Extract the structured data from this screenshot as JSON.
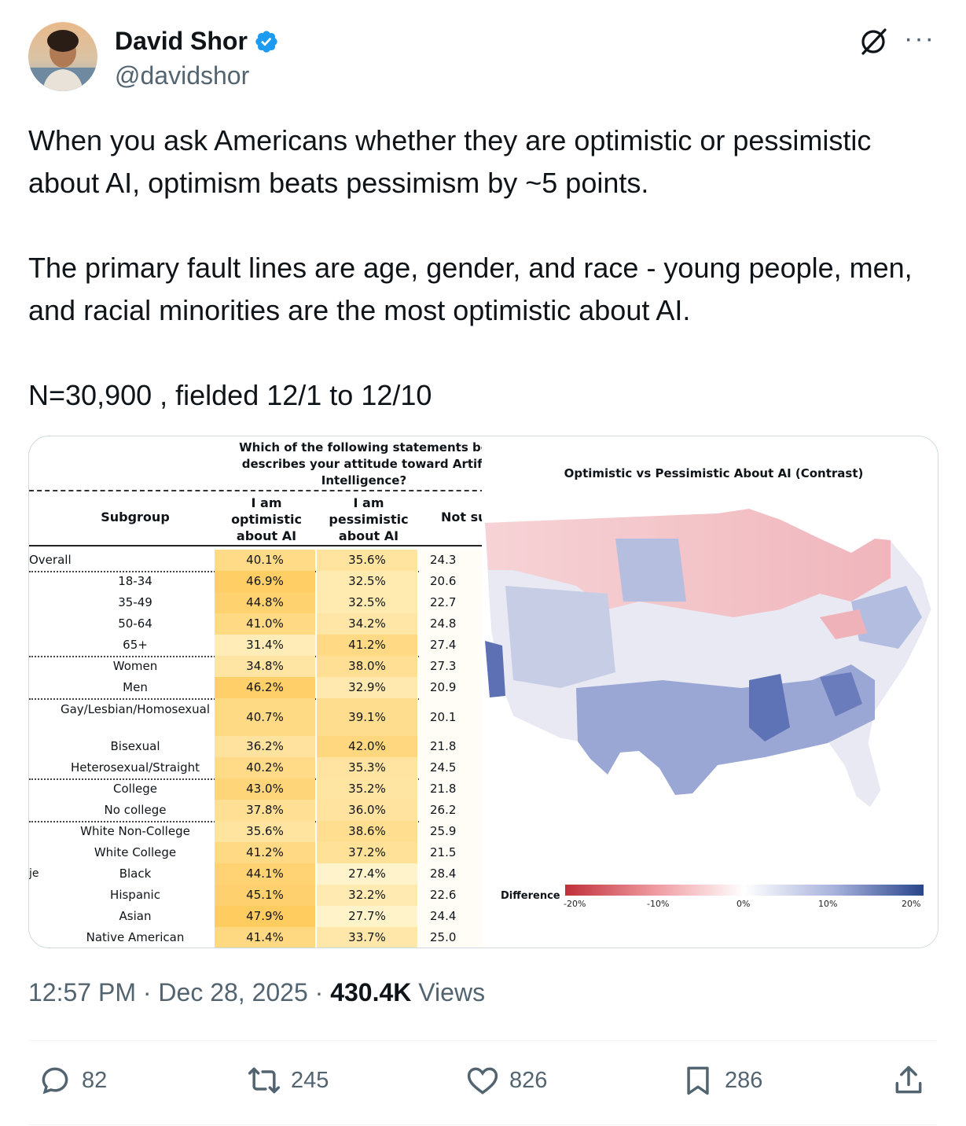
{
  "author": {
    "name": "David Shor",
    "handle": "@davidshor"
  },
  "post": {
    "text": "When you ask Americans whether they are optimistic or pessimistic about AI, optimism beats pessimism by ~5 points.\n\nThe primary fault lines are age, gender, and race - young people, men, and racial minorities are the most optimistic about AI.\n\nN=30,900 , fielded 12/1 to 12/10",
    "time": "12:57 PM",
    "date": "Dec 28, 2025",
    "views_count": "430.4K",
    "views_label": "Views",
    "sep": "·"
  },
  "table": {
    "question": "Which of the following statements be describes your attitude toward Artifi Intelligence?",
    "col_subgroup": "Subgroup",
    "col_optimistic": "I am optimistic about AI",
    "col_pessimistic": "I am pessimistic about AI",
    "col_notsure": "Not su",
    "side_label": "je",
    "rows": [
      {
        "label": "Overall",
        "opt": "40.1%",
        "pes": "35.6%",
        "ns": "24.3"
      },
      {
        "label": "18-34",
        "opt": "46.9%",
        "pes": "32.5%",
        "ns": "20.6"
      },
      {
        "label": "35-49",
        "opt": "44.8%",
        "pes": "32.5%",
        "ns": "22.7"
      },
      {
        "label": "50-64",
        "opt": "41.0%",
        "pes": "34.2%",
        "ns": "24.8"
      },
      {
        "label": "65+",
        "opt": "31.4%",
        "pes": "41.2%",
        "ns": "27.4"
      },
      {
        "label": "Women",
        "opt": "34.8%",
        "pes": "38.0%",
        "ns": "27.3"
      },
      {
        "label": "Men",
        "opt": "46.2%",
        "pes": "32.9%",
        "ns": "20.9"
      },
      {
        "label": "Gay/Lesbian/Homosexual",
        "opt": "40.7%",
        "pes": "39.1%",
        "ns": "20.1"
      },
      {
        "label": "Bisexual",
        "opt": "36.2%",
        "pes": "42.0%",
        "ns": "21.8"
      },
      {
        "label": "Heterosexual/Straight",
        "opt": "40.2%",
        "pes": "35.3%",
        "ns": "24.5"
      },
      {
        "label": "College",
        "opt": "43.0%",
        "pes": "35.2%",
        "ns": "21.8"
      },
      {
        "label": "No college",
        "opt": "37.8%",
        "pes": "36.0%",
        "ns": "26.2"
      },
      {
        "label": "White Non-College",
        "opt": "35.6%",
        "pes": "38.6%",
        "ns": "25.9"
      },
      {
        "label": "White College",
        "opt": "41.2%",
        "pes": "37.2%",
        "ns": "21.5"
      },
      {
        "label": "Black",
        "opt": "44.1%",
        "pes": "27.4%",
        "ns": "28.4"
      },
      {
        "label": "Hispanic",
        "opt": "45.1%",
        "pes": "32.2%",
        "ns": "22.6"
      },
      {
        "label": "Asian",
        "opt": "47.9%",
        "pes": "27.7%",
        "ns": "24.4"
      },
      {
        "label": "Native American",
        "opt": "41.4%",
        "pes": "33.7%",
        "ns": "25.0"
      }
    ]
  },
  "map": {
    "title": "Optimistic vs Pessimistic About AI (Contrast)",
    "legend_label": "Difference",
    "ticks": [
      "-20%",
      "-10%",
      "0%",
      "10%",
      "20%"
    ],
    "colors": {
      "negative": "#c0303a",
      "neutral": "#ffffff",
      "positive": "#28468c"
    }
  },
  "actions": {
    "replies": "82",
    "reposts": "245",
    "likes": "826",
    "bookmarks": "286"
  }
}
